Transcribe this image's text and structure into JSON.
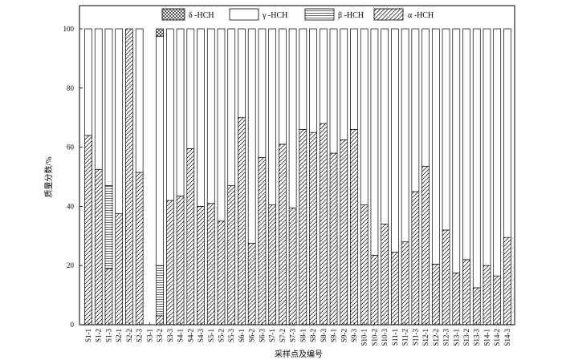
{
  "chart_data": {
    "type": "bar",
    "stacked": true,
    "xlabel": "采样点及编号",
    "ylabel": "质量分数/%",
    "ylim": [
      0,
      100
    ],
    "yticks": [
      0,
      20,
      40,
      60,
      80,
      100
    ],
    "grid": false,
    "legend_position": "top",
    "categories": [
      "S1-1",
      "S1-2",
      "S1-3",
      "S2-1",
      "S2-2",
      "S2-3",
      "S3-1",
      "S3-2",
      "S3-3",
      "S4-1",
      "S4-2",
      "S4-3",
      "S5-1",
      "S5-2",
      "S5-3",
      "S6-1",
      "S6-2",
      "S6-3",
      "S7-1",
      "S7-2",
      "S7-3",
      "S8-1",
      "S8-2",
      "S8-3",
      "S9-1",
      "S9-2",
      "S9-3",
      "S10-1",
      "S10-2",
      "S10-3",
      "S11-1",
      "S11-2",
      "S11-3",
      "S12-1",
      "S12-2",
      "S12-3",
      "S13-1",
      "S13-2",
      "S13-3",
      "S14-1",
      "S14-2",
      "S14-3"
    ],
    "series": [
      {
        "name": "α -HCH",
        "pattern": "diag-right",
        "values": [
          64,
          52.5,
          19,
          37.5,
          100,
          51.5,
          0,
          3,
          42,
          43.5,
          59.5,
          40,
          41,
          35,
          47,
          70,
          27.5,
          56.5,
          40.5,
          61,
          39.5,
          66,
          65,
          68,
          58,
          62.5,
          66,
          40.5,
          23.5,
          34,
          24.5,
          28,
          45,
          53.5,
          20.5,
          32,
          17.5,
          22,
          12.5,
          20,
          16.5,
          29.5
        ]
      },
      {
        "name": "β -HCH",
        "pattern": "horizontal",
        "values": [
          0,
          0,
          28,
          0,
          0,
          0,
          0,
          17,
          0,
          0,
          0,
          0,
          0,
          0,
          0,
          0,
          0,
          0,
          0,
          0,
          0,
          0,
          0,
          0,
          0,
          0,
          0,
          0,
          0,
          0,
          0,
          0,
          0,
          0,
          0,
          0,
          0,
          0,
          0,
          0,
          0,
          0
        ]
      },
      {
        "name": "γ -HCH",
        "pattern": "none",
        "values": [
          36,
          47.5,
          53,
          62.5,
          0,
          48.5,
          0,
          77.5,
          58,
          56.5,
          40.5,
          60,
          59,
          65,
          53,
          30,
          72.5,
          43.5,
          59.5,
          39,
          60.5,
          34,
          35,
          32,
          42,
          37.5,
          34,
          59.5,
          76.5,
          66,
          75.5,
          72,
          55,
          46.5,
          79.5,
          68,
          82.5,
          78,
          87.5,
          80,
          83.5,
          70.5
        ]
      },
      {
        "name": "δ -HCH",
        "pattern": "crosshatch",
        "values": [
          0,
          0,
          0,
          0,
          0,
          0,
          0,
          2.5,
          0,
          0,
          0,
          0,
          0,
          0,
          0,
          0,
          0,
          0,
          0,
          0,
          0,
          0,
          0,
          0,
          0,
          0,
          0,
          0,
          0,
          0,
          0,
          0,
          0,
          0,
          0,
          0,
          0,
          0,
          0,
          0,
          0,
          0
        ]
      }
    ],
    "legend_order": [
      "δ -HCH",
      "γ -HCH",
      "β -HCH",
      "α -HCH"
    ]
  }
}
